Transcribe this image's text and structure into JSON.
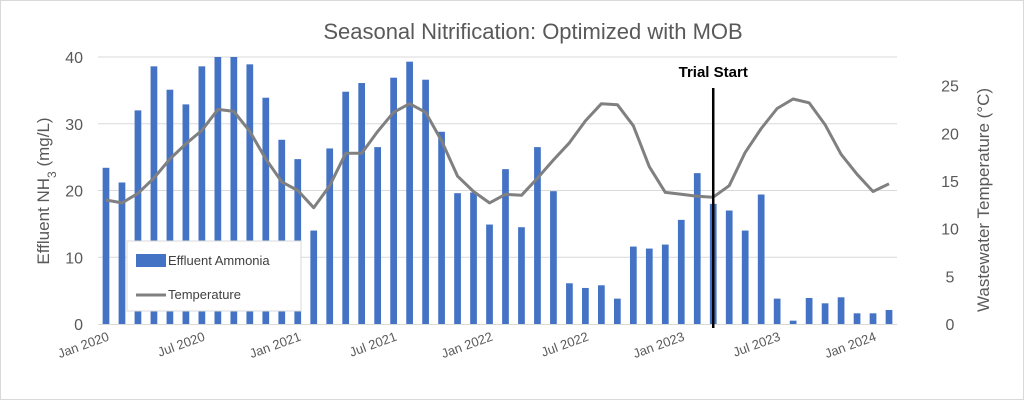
{
  "chart_data": {
    "type": "bar+line",
    "title": "Seasonal Nitrification: Optimized with MOB",
    "ylabel_left": "Effluent NH",
    "ylabel_left_sub": "3",
    "ylabel_left_unit": " (mg/L)",
    "ylabel_right": "Wastewater Temperature (°C)",
    "ylim_left": [
      0,
      40
    ],
    "ylim_right": [
      0,
      28
    ],
    "yticks_left": [
      "0",
      "10",
      "20",
      "30",
      "40"
    ],
    "yticks_right": [
      "0",
      "5",
      "10",
      "15",
      "20",
      "25"
    ],
    "xtick_labels": [
      "Jan 2020",
      "Jul 2020",
      "Jan 2021",
      "Jul 2021",
      "Jan 2022",
      "Jul 2022",
      "Jan 2023",
      "Jul 2023",
      "Jan 2024"
    ],
    "grid": "horizontal",
    "series": [
      {
        "name": "Effluent Ammonia",
        "type": "bar",
        "color": "#4472C4",
        "axis": "left",
        "values": [
          23.4,
          21.2,
          32,
          38.6,
          35.1,
          32.9,
          38.6,
          40.2,
          40.2,
          38.9,
          33.9,
          27.6,
          24.7,
          14,
          26.3,
          34.8,
          36.1,
          26.5,
          36.9,
          39.3,
          36.6,
          28.8,
          19.6,
          19.7,
          14.9,
          23.2,
          14.5,
          26.5,
          19.9,
          6.1,
          5.4,
          5.8,
          3.8,
          11.6,
          11.3,
          11.9,
          15.6,
          22.6,
          18,
          17,
          14,
          19.4,
          3.8,
          0.5,
          3.9,
          3.1,
          4,
          1.6,
          1.6,
          2.1
        ]
      },
      {
        "name": "Temperature",
        "type": "line",
        "color": "#808080",
        "axis": "right",
        "values": [
          13,
          12.7,
          13.7,
          15.3,
          17.3,
          18.9,
          20.3,
          22.5,
          22.3,
          20.2,
          17.3,
          14.9,
          14,
          12.2,
          14.5,
          17.9,
          17.9,
          20.2,
          22.2,
          23.1,
          22.2,
          19.2,
          15.5,
          13.9,
          12.7,
          13.6,
          13.5,
          15.3,
          17.2,
          19,
          21.3,
          23.1,
          23,
          20.8,
          16.5,
          13.8,
          13.6,
          13.4,
          13.3,
          14.5,
          18,
          20.5,
          22.6,
          23.6,
          23.2,
          20.9,
          17.8,
          15.7,
          13.9,
          14.7
        ]
      }
    ],
    "annotation": {
      "text": "Trial Start",
      "x_index": 38.5
    },
    "legend": {
      "position": "inside-lower-left",
      "items": [
        "Effluent Ammonia",
        "Temperature"
      ]
    }
  }
}
